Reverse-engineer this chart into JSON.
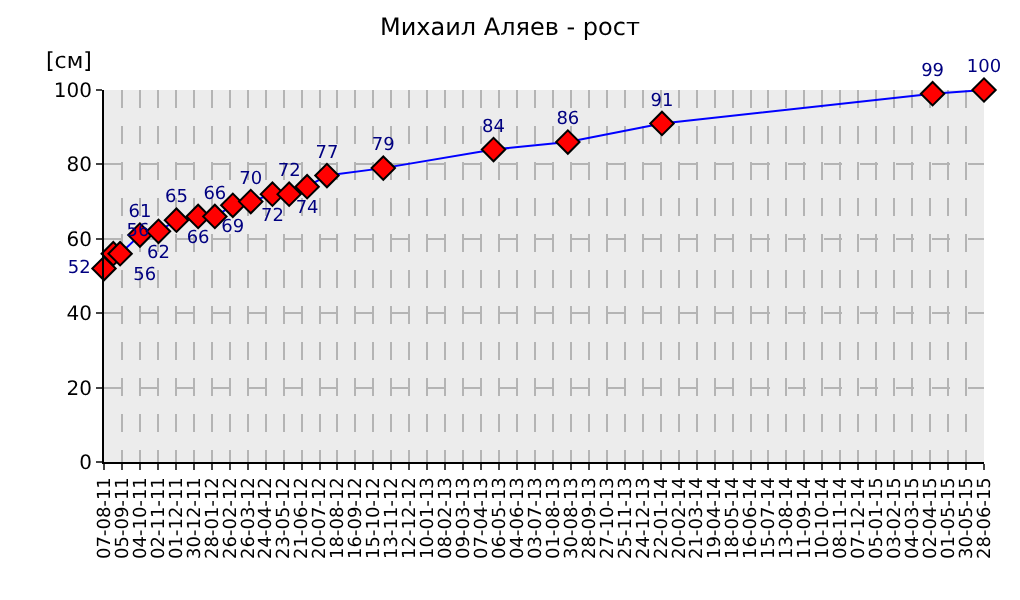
{
  "chart_data": {
    "type": "line",
    "title": "Михаил Аляев - рост",
    "ylabel": "[см]",
    "x": [
      "2011-08-07",
      "2011-08-22",
      "2011-09-02",
      "2011-10-04",
      "2011-11-03",
      "2011-12-02",
      "2012-01-06",
      "2012-02-02",
      "2012-03-02",
      "2012-03-31",
      "2012-05-05",
      "2012-06-01",
      "2012-06-30",
      "2012-08-01",
      "2012-10-31",
      "2013-04-27",
      "2013-08-25",
      "2014-01-24",
      "2015-04-06",
      "2015-06-28"
    ],
    "series": [
      {
        "color": "#0000ff",
        "values": [
          52,
          56,
          56,
          61,
          62,
          65,
          66,
          66,
          69,
          70,
          72,
          72,
          74,
          77,
          79,
          84,
          86,
          91,
          99,
          100
        ]
      }
    ],
    "data_labels": true,
    "marker": "diamond",
    "line_style": "solid",
    "grid": true,
    "ylim": [
      0,
      100
    ],
    "yticks": [
      0,
      20,
      40,
      60,
      80,
      100
    ],
    "xlim": [
      "2011-08-07",
      "2015-06-28"
    ],
    "xticks": [
      {
        "value": "2011-08-07",
        "label": "07-08-11"
      },
      {
        "value": "2011-09-05",
        "label": "05-09-11"
      },
      {
        "value": "2011-10-04",
        "label": "04-10-11"
      },
      {
        "value": "2011-11-02",
        "label": "02-11-11"
      },
      {
        "value": "2011-12-01",
        "label": "01-12-11"
      },
      {
        "value": "2011-12-30",
        "label": "30-12-11"
      },
      {
        "value": "2012-01-28",
        "label": "28-01-12"
      },
      {
        "value": "2012-02-26",
        "label": "26-02-12"
      },
      {
        "value": "2012-03-26",
        "label": "26-03-12"
      },
      {
        "value": "2012-04-24",
        "label": "24-04-12"
      },
      {
        "value": "2012-05-23",
        "label": "23-05-12"
      },
      {
        "value": "2012-06-21",
        "label": "21-06-12"
      },
      {
        "value": "2012-07-20",
        "label": "20-07-12"
      },
      {
        "value": "2012-08-18",
        "label": "18-08-12"
      },
      {
        "value": "2012-09-16",
        "label": "16-09-12"
      },
      {
        "value": "2012-10-15",
        "label": "15-10-12"
      },
      {
        "value": "2012-11-13",
        "label": "13-11-12"
      },
      {
        "value": "2012-12-12",
        "label": "12-12-12"
      },
      {
        "value": "2013-01-10",
        "label": "10-01-13"
      },
      {
        "value": "2013-02-08",
        "label": "08-02-13"
      },
      {
        "value": "2013-03-09",
        "label": "09-03-13"
      },
      {
        "value": "2013-04-07",
        "label": "07-04-13"
      },
      {
        "value": "2013-05-06",
        "label": "06-05-13"
      },
      {
        "value": "2013-06-04",
        "label": "04-06-13"
      },
      {
        "value": "2013-07-03",
        "label": "03-07-13"
      },
      {
        "value": "2013-08-01",
        "label": "01-08-13"
      },
      {
        "value": "2013-08-30",
        "label": "30-08-13"
      },
      {
        "value": "2013-09-28",
        "label": "28-09-13"
      },
      {
        "value": "2013-10-27",
        "label": "27-10-13"
      },
      {
        "value": "2013-11-25",
        "label": "25-11-13"
      },
      {
        "value": "2013-12-24",
        "label": "24-12-13"
      },
      {
        "value": "2014-01-22",
        "label": "22-01-14"
      },
      {
        "value": "2014-02-20",
        "label": "20-02-14"
      },
      {
        "value": "2014-03-21",
        "label": "21-03-14"
      },
      {
        "value": "2014-04-19",
        "label": "19-04-14"
      },
      {
        "value": "2014-05-18",
        "label": "18-05-14"
      },
      {
        "value": "2014-06-16",
        "label": "16-06-14"
      },
      {
        "value": "2014-07-15",
        "label": "15-07-14"
      },
      {
        "value": "2014-08-13",
        "label": "13-08-14"
      },
      {
        "value": "2014-09-11",
        "label": "11-09-14"
      },
      {
        "value": "2014-10-10",
        "label": "10-10-14"
      },
      {
        "value": "2014-11-08",
        "label": "08-11-14"
      },
      {
        "value": "2014-12-07",
        "label": "07-12-14"
      },
      {
        "value": "2015-01-05",
        "label": "05-01-15"
      },
      {
        "value": "2015-02-03",
        "label": "03-02-15"
      },
      {
        "value": "2015-03-04",
        "label": "04-03-15"
      },
      {
        "value": "2015-04-02",
        "label": "02-04-15"
      },
      {
        "value": "2015-05-01",
        "label": "01-05-15"
      },
      {
        "value": "2015-05-30",
        "label": "30-05-15"
      },
      {
        "value": "2015-06-28",
        "label": "28-06-15"
      }
    ]
  }
}
